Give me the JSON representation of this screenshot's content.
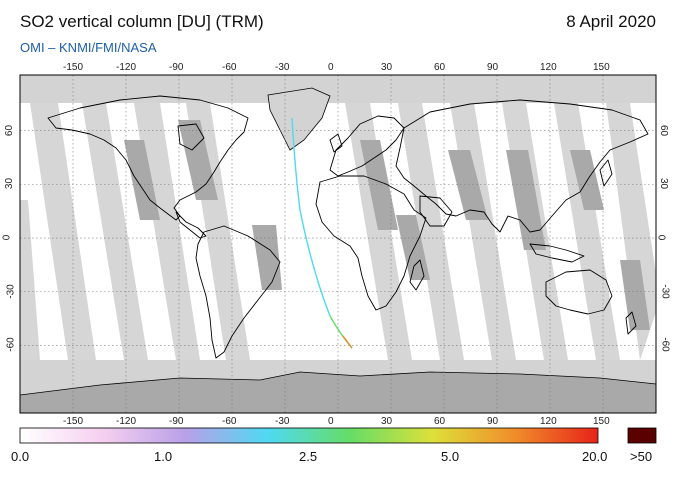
{
  "header": {
    "title": "SO2 vertical column [DU] (TRM)",
    "date": "8 April 2020",
    "credit": "OMI  –  KNMI/FMI/NASA"
  },
  "map": {
    "lon_ticks": [
      "-150",
      "-120",
      "-90",
      "-60",
      "-30",
      "0",
      "30",
      "60",
      "90",
      "120",
      "150"
    ],
    "lat_ticks_left": [
      "60",
      "30",
      "0",
      "-30",
      "-60"
    ],
    "lat_ticks_right": [
      "60",
      "30",
      "0",
      "-30",
      "-60"
    ],
    "colors": {
      "ocean": "#ffffff",
      "swath_gap": "#d3d3d3",
      "swath_gap_dark": "#a9a9a9",
      "coast": "#000000"
    }
  },
  "colorbar": {
    "labels": [
      "0.0",
      "1.0",
      "2.5",
      "5.0",
      "20.0"
    ],
    "overflow_label": ">50",
    "stops": [
      "#ffffff",
      "#f5d0f0",
      "#b9a0e8",
      "#4fd9f2",
      "#66dd66",
      "#dde03a",
      "#f08c2a",
      "#e8231a"
    ],
    "overflow_color": "#5a0000"
  }
}
